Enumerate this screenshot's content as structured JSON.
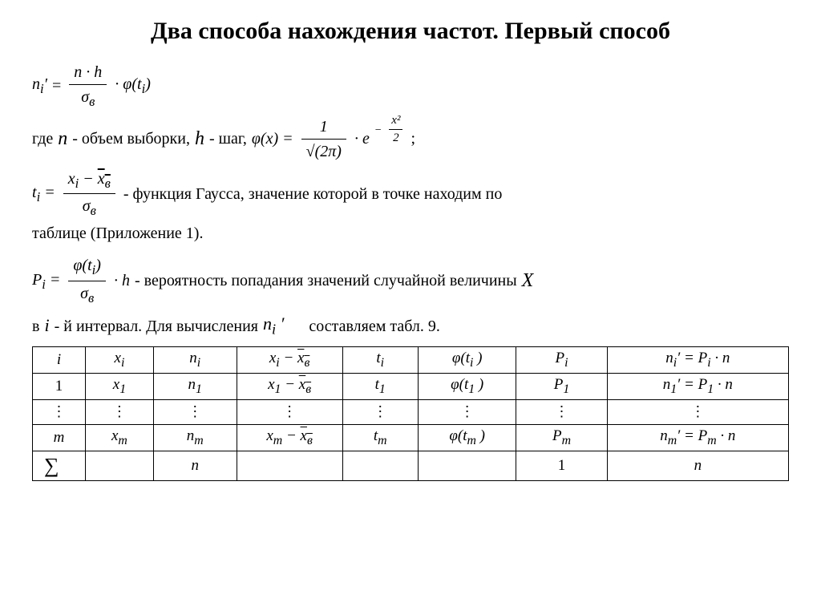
{
  "title": "Два способа нахождения частот. Первый способ",
  "formula1": {
    "lhs": "n<sub>i</sub>′",
    "num": "n · h",
    "den": "σ<sub>в</sub>",
    "tail": " · φ(t<sub>i</sub>)"
  },
  "line_where": {
    "prefix": "где ",
    "n": "n",
    "n_text": " - объем выборки, ",
    "h": "h",
    "h_text": " - шаг, ",
    "phi_lhs": "φ(x) = ",
    "phi_num1": "1",
    "phi_den1": "√(2π)",
    "phi_mid": " · e",
    "phi_exp_num": "x²",
    "phi_exp_den": "2",
    "phi_exp_sign": "−",
    "semicolon": ";"
  },
  "line_ti": {
    "lhs": "t<sub>i</sub>  =  ",
    "num": "x<sub>i</sub> − <span class='bar'>x<sub>в</sub></span>",
    "den": "σ<sub>в</sub>",
    "text": " - функция Гаусса, значение которой в точке  находим по"
  },
  "line_table_ref": "таблице (Приложение 1).",
  "line_pi": {
    "lhs": "P<sub>i</sub> = ",
    "num": "φ(t<sub>i</sub>)",
    "den": "σ<sub>в</sub>",
    "tail": " · h",
    "text": " - вероятность попадания значений случайной  величины ",
    "X": "X"
  },
  "line_interval": {
    "prefix": "в ",
    "i": "i",
    "mid": "- й интервал. Для вычисления ",
    "ni": "n<sub>i</sub> ′",
    "tail": "     составляем табл. 9."
  },
  "table": {
    "headers": [
      "i",
      "x<sub>i</sub>",
      "n<sub>i</sub>",
      "x<sub>i</sub> − <span class='bar'>x<sub>в</sub></span>",
      "t<sub>i</sub>",
      "φ(t<sub>i</sub> )",
      "P<sub>i</sub>",
      "n<sub>i</sub>′ = P<sub>i</sub> · n"
    ],
    "row1": [
      "1",
      "x<sub>1</sub>",
      "n<sub>1</sub>",
      "x<sub>1</sub> − <span class='bar'>x<sub>в</sub></span>",
      "t<sub>1</sub>",
      "φ(t<sub>1</sub> )",
      "P<sub>1</sub>",
      "n<sub>1</sub>′ = P<sub>1</sub> · n"
    ],
    "row_dots": [
      "⋮",
      "⋮",
      "⋮",
      "⋮",
      "⋮",
      "⋮",
      "⋮",
      "⋮"
    ],
    "rowm": [
      "m",
      "x<sub>m</sub>",
      "n<sub>m</sub>",
      "x<sub>m</sub> − <span class='bar'>x<sub>в</sub></span>",
      "t<sub>m</sub>",
      "φ(t<sub>m</sub> )",
      "P<sub>m</sub>",
      "n<sub>m</sub>′ = P<sub>m</sub> · n"
    ],
    "rowsum": [
      "∑",
      "",
      "n",
      "",
      "",
      "",
      "1",
      "n"
    ]
  }
}
